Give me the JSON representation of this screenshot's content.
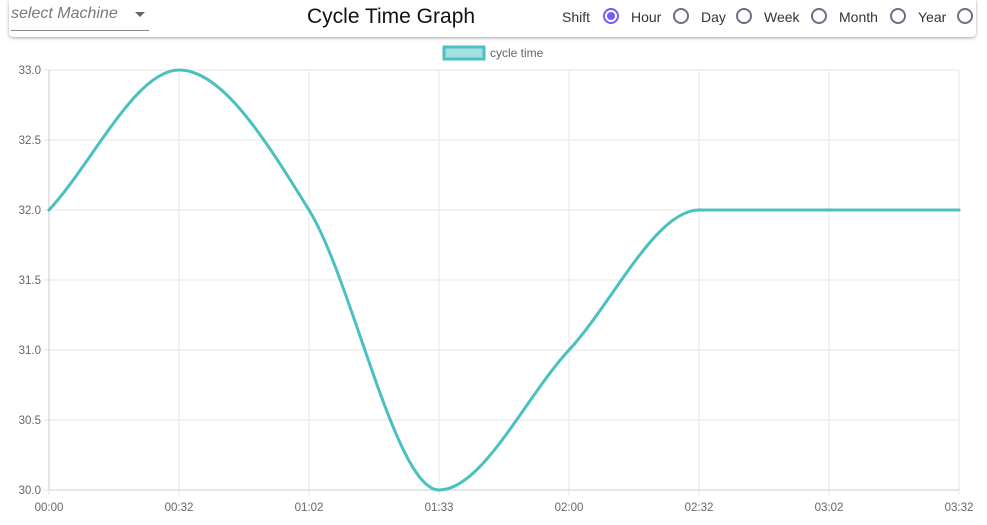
{
  "toolbar": {
    "machine_select": {
      "placeholder": "select Machine",
      "icon": "chevron-down-icon"
    },
    "title": "Cycle Time Graph",
    "period_options": [
      {
        "label": "Shift",
        "checked": true
      },
      {
        "label": "Hour",
        "checked": false
      },
      {
        "label": "Day",
        "checked": false
      },
      {
        "label": "Week",
        "checked": false
      },
      {
        "label": "Month",
        "checked": false
      },
      {
        "label": "Year",
        "checked": false
      }
    ]
  },
  "chart_data": {
    "type": "line",
    "categories": [
      "00:00",
      "00:32",
      "01:02",
      "01:33",
      "02:00",
      "02:32",
      "03:02",
      "03:32"
    ],
    "series": [
      {
        "name": "cycle time",
        "values": [
          32.0,
          33.0,
          32.0,
          30.0,
          31.0,
          32.0,
          32.0,
          32.0
        ]
      }
    ],
    "ylim": [
      30.0,
      33.0
    ],
    "yticks": [
      "30.0",
      "30.5",
      "31.0",
      "31.5",
      "32.0",
      "32.5",
      "33.0"
    ],
    "grid": true,
    "legend": "top-center",
    "colors": {
      "line": "#4bc0c0",
      "legend_fill": "#a5dfdf",
      "grid": "#e5e5e5"
    }
  }
}
